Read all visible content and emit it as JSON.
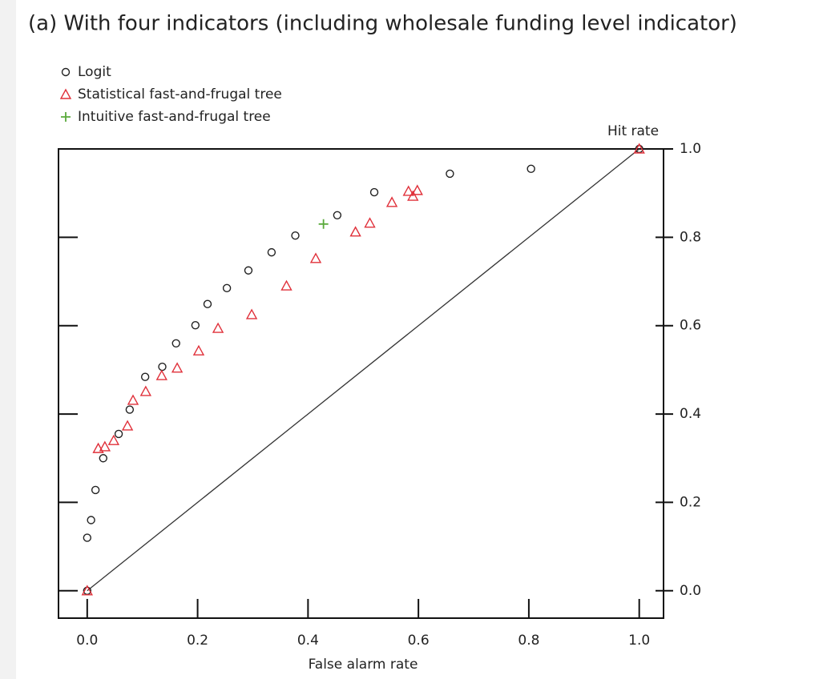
{
  "chart_data": {
    "type": "scatter",
    "title": "(a) With four indicators (including wholesale funding level indicator)",
    "xlabel": "False alarm rate",
    "ylabel": "Hit rate",
    "xlim": [
      -0.052,
      1.044
    ],
    "ylim": [
      -0.062,
      1.0
    ],
    "xticks": [
      {
        "value": 0,
        "label": "0.0"
      },
      0.2,
      0.4,
      0.6,
      0.8,
      {
        "value": 1,
        "label": "1.0"
      }
    ],
    "yticks": [
      {
        "value": 0,
        "label": "0.0"
      },
      0.2,
      0.4,
      0.6,
      0.8,
      {
        "value": 1,
        "label": "1.0"
      }
    ],
    "series": [
      {
        "name": "Logit",
        "color": "#222222",
        "marker": "circle",
        "x": [
          0,
          0,
          0.007,
          0.015,
          0.029,
          0.057,
          0.077,
          0.105,
          0.136,
          0.161,
          0.196,
          0.218,
          0.253,
          0.292,
          0.334,
          0.377,
          0.453,
          0.52,
          0.657,
          0.804,
          1
        ],
        "values": [
          0,
          0.12,
          0.16,
          0.228,
          0.3,
          0.355,
          0.41,
          0.484,
          0.507,
          0.56,
          0.601,
          0.649,
          0.685,
          0.725,
          0.766,
          0.804,
          0.85,
          0.902,
          0.944,
          0.955,
          1
        ]
      },
      {
        "name": "Statistical fast-and-frugal tree",
        "color": "#e0303a",
        "marker": "triangle",
        "x": [
          0,
          0.02,
          0.032,
          0.048,
          0.073,
          0.083,
          0.106,
          0.135,
          0.163,
          0.202,
          0.237,
          0.298,
          0.361,
          0.414,
          0.486,
          0.512,
          0.552,
          0.582,
          0.598,
          0.59,
          1
        ],
        "values": [
          0,
          0.322,
          0.326,
          0.34,
          0.373,
          0.431,
          0.451,
          0.487,
          0.504,
          0.543,
          0.594,
          0.625,
          0.69,
          0.752,
          0.812,
          0.832,
          0.879,
          0.904,
          0.906,
          0.893,
          1
        ]
      },
      {
        "name": "Intuitive fast-and-frugal tree",
        "color": "#5aaa3c",
        "marker": "plus",
        "x": [
          0.428
        ],
        "values": [
          0.83
        ]
      }
    ]
  }
}
